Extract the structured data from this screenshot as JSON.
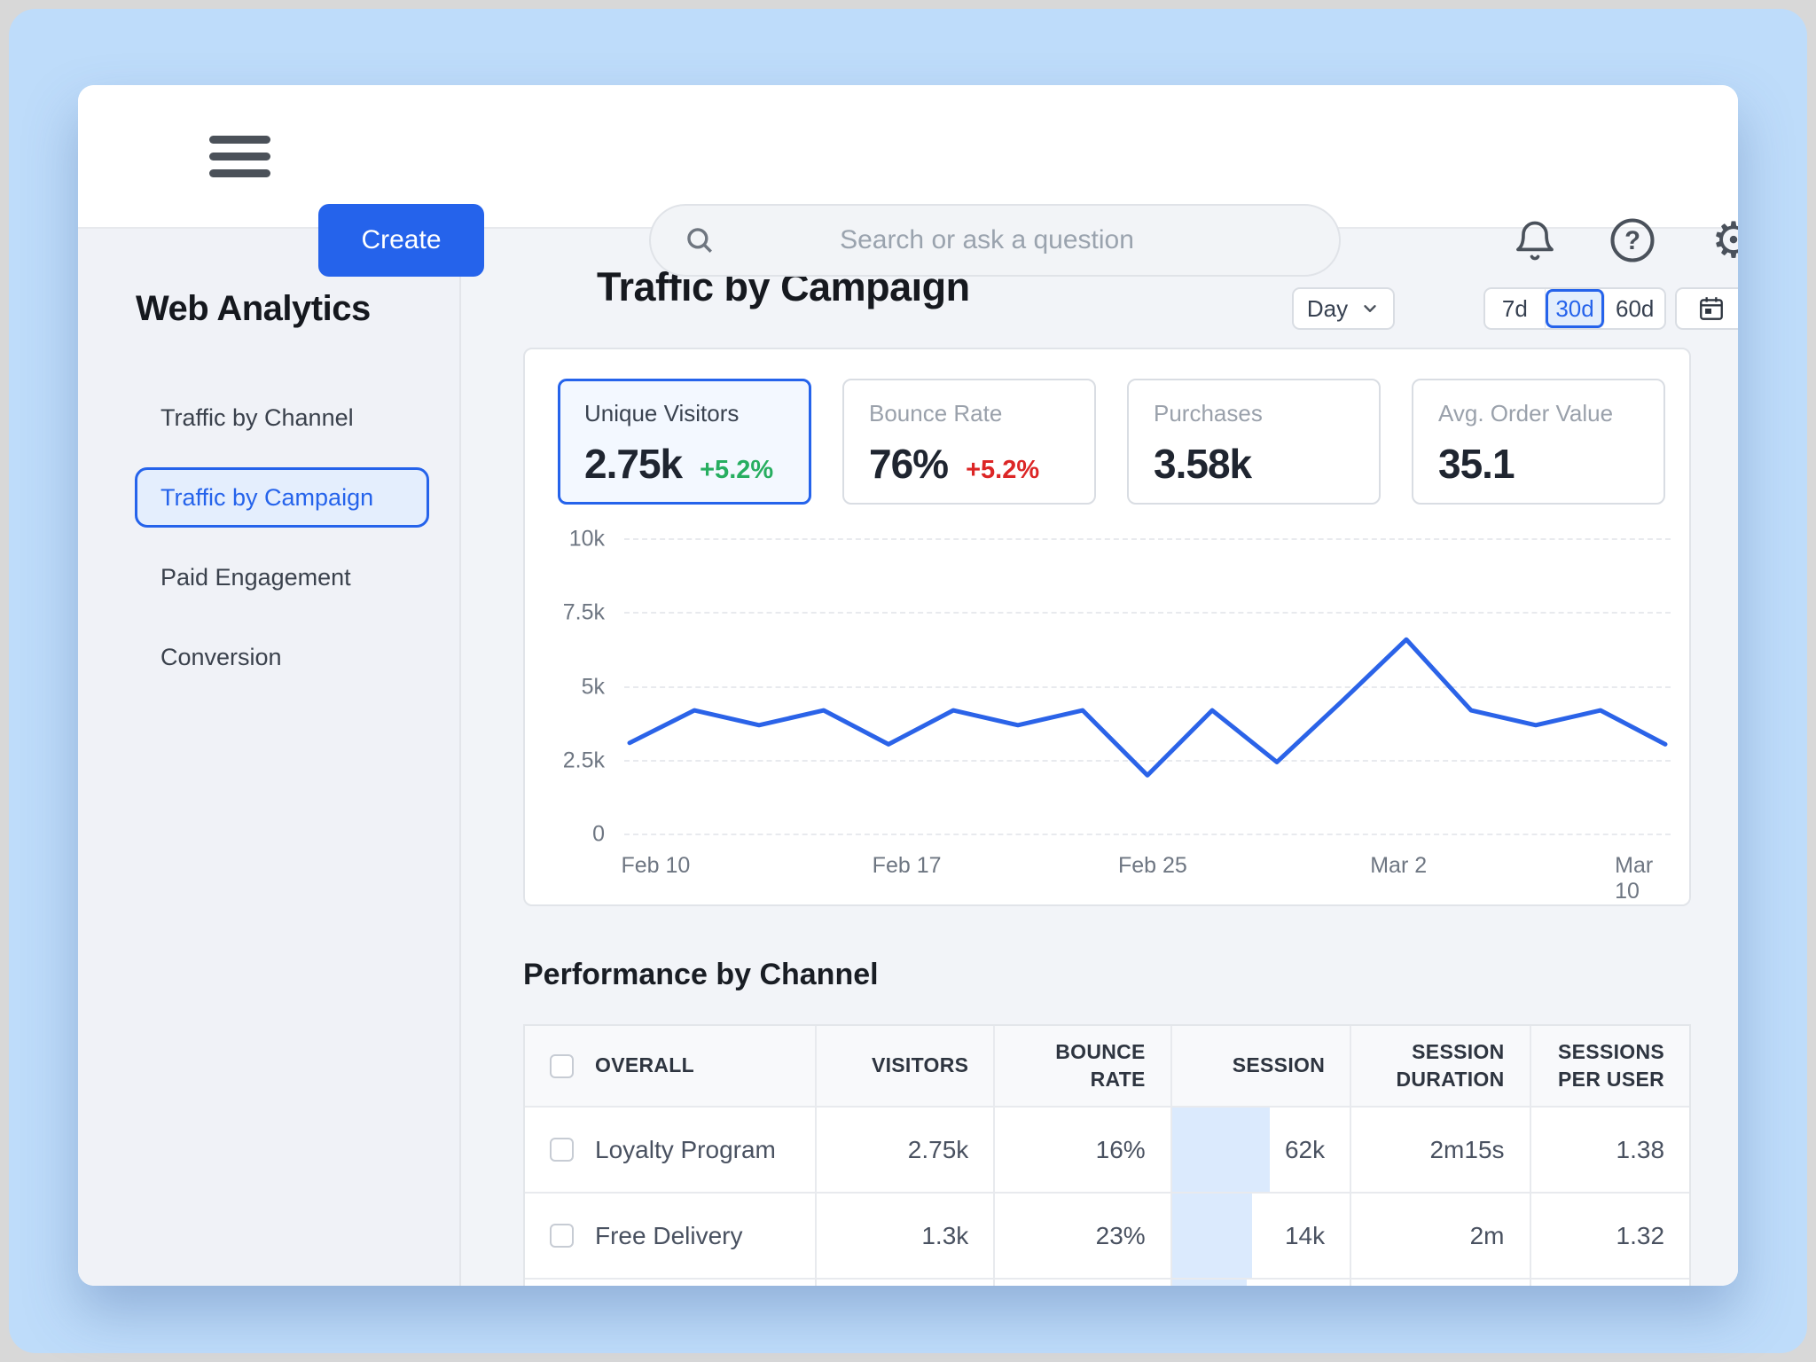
{
  "topbar": {
    "create_label": "Create",
    "search_placeholder": "Search or ask a question"
  },
  "sidebar": {
    "title": "Web Analytics",
    "items": [
      {
        "label": "Traffic by Channel",
        "active": false
      },
      {
        "label": "Traffic by Campaign",
        "active": true
      },
      {
        "label": "Paid Engagement",
        "active": false
      },
      {
        "label": "Conversion",
        "active": false
      }
    ]
  },
  "header": {
    "title": "Traffic by Campaign",
    "granularity_label": "Day",
    "range_options": [
      "7d",
      "30d",
      "60d"
    ],
    "selected_range": "30d"
  },
  "stats": [
    {
      "label": "Unique Visitors",
      "value": "2.75k",
      "delta": "+5.2%",
      "delta_color": "#27ae60",
      "selected": true
    },
    {
      "label": "Bounce Rate",
      "value": "76%",
      "delta": "+5.2%",
      "delta_color": "#dc2626",
      "selected": false
    },
    {
      "label": "Purchases",
      "value": "3.58k",
      "delta": "",
      "delta_color": "",
      "selected": false
    },
    {
      "label": "Avg. Order Value",
      "value": "35.1",
      "delta": "",
      "delta_color": "",
      "selected": false
    }
  ],
  "chart_data": {
    "type": "line",
    "series_name": "Unique Visitors",
    "values": [
      3100,
      4200,
      3700,
      4200,
      3050,
      4200,
      3700,
      4200,
      2000,
      4200,
      2450,
      4500,
      6600,
      4200,
      3700,
      4200,
      3050
    ],
    "ylim": [
      0,
      10000
    ],
    "yticks": [
      0,
      2500,
      5000,
      7500,
      10000
    ],
    "ytick_labels": [
      "0",
      "2.5k",
      "5k",
      "7.5k",
      "10k"
    ],
    "x_tick_labels": [
      "Feb 10",
      "Feb 17",
      "Feb 25",
      "Mar 2",
      "Mar 10"
    ],
    "x_tick_positions_pct": [
      3,
      27,
      50.5,
      74,
      96.5
    ],
    "grid": "horizontal",
    "line_color": "#2b63e8"
  },
  "table": {
    "heading": "Performance by Channel",
    "columns": [
      "OVERALL",
      "VISITORS",
      "BOUNCE RATE",
      "SESSION",
      "SESSION DURATION",
      "SESSIONS PER USER"
    ],
    "rows": [
      {
        "channel": "Loyalty Program",
        "visitors": "2.75k",
        "bounce_rate": "16%",
        "session": "62k",
        "session_duration": "2m15s",
        "sessions_per_user": "1.38",
        "session_bar_pct": 55,
        "checked": false
      },
      {
        "channel": "Free Delivery",
        "visitors": "1.3k",
        "bounce_rate": "23%",
        "session": "14k",
        "session_duration": "2m",
        "sessions_per_user": "1.32",
        "session_bar_pct": 45,
        "checked": false
      }
    ],
    "clipped_row": {
      "session_bar_pct": 42
    }
  },
  "colors": {
    "accent_blue": "#2563eb",
    "selected_light_blue": "#e3eefc",
    "positive_green": "#27ae60",
    "negative_red": "#dc2626",
    "chart_line": "#2b63e8",
    "session_bar": "#dbeafd",
    "frame_blue": "#bedcfa"
  }
}
